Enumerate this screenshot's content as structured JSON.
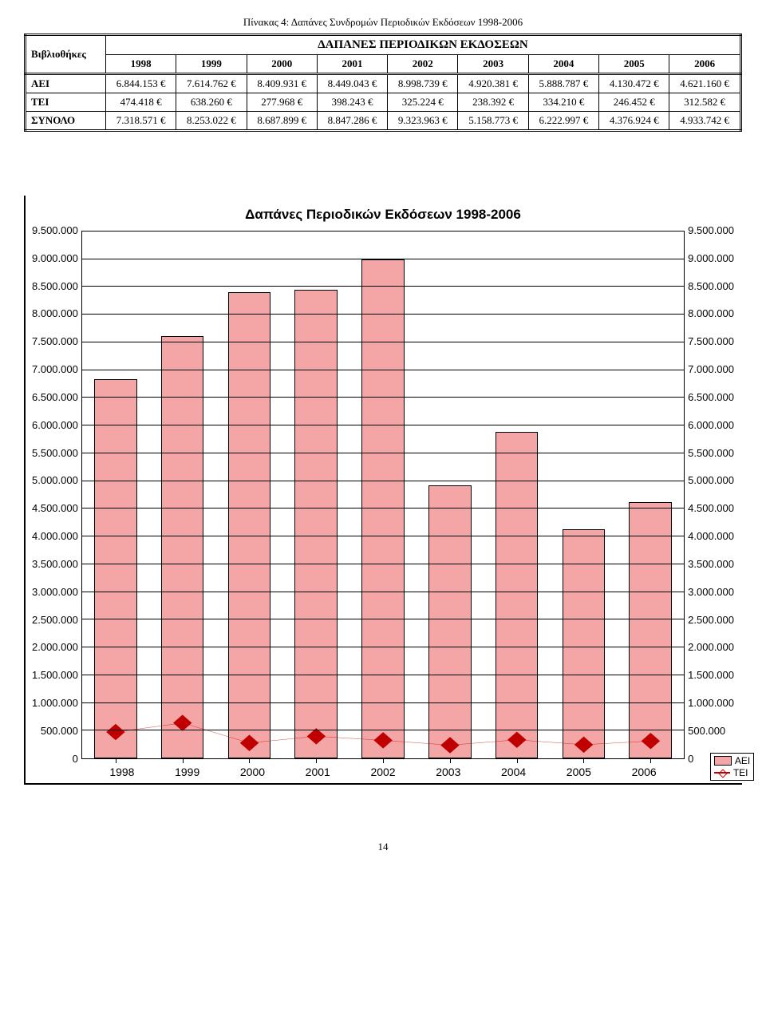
{
  "caption": "Πίνακας 4: Δαπάνες Συνδρομών Περιοδικών Εκδόσεων 1998-2006",
  "table": {
    "title": "ΔΑΠΑΝΕΣ ΠΕΡΙΟΔΙΚΩΝ ΕΚΔΟΣΕΩΝ",
    "corner": "Βιβλιοθήκες",
    "years": [
      "1998",
      "1999",
      "2000",
      "2001",
      "2002",
      "2003",
      "2004",
      "2005",
      "2006"
    ],
    "rows": [
      {
        "label": "ΑΕΙ",
        "cells": [
          "6.844.153 €",
          "7.614.762 €",
          "8.409.931 €",
          "8.449.043 €",
          "8.998.739 €",
          "4.920.381 €",
          "5.888.787 €",
          "4.130.472 €",
          "4.621.160 €"
        ]
      },
      {
        "label": "ΤΕΙ",
        "cells": [
          "474.418 €",
          "638.260 €",
          "277.968 €",
          "398.243 €",
          "325.224 €",
          "238.392 €",
          "334.210 €",
          "246.452 €",
          "312.582 €"
        ]
      },
      {
        "label": "ΣΥΝΟΛΟ",
        "cells": [
          "7.318.571 €",
          "8.253.022 €",
          "8.687.899 €",
          "8.847.286 €",
          "9.323.963 €",
          "5.158.773 €",
          "6.222.997 €",
          "4.376.924 €",
          "4.933.742 €"
        ]
      }
    ]
  },
  "chart": {
    "title": "Δαπάνες Περιοδικών Εκδόσεων 1998-2006",
    "y_max": 9500000,
    "y_step": 500000,
    "y_labels": [
      "0",
      "500.000",
      "1.000.000",
      "1.500.000",
      "2.000.000",
      "2.500.000",
      "3.000.000",
      "3.500.000",
      "4.000.000",
      "4.500.000",
      "5.000.000",
      "5.500.000",
      "6.000.000",
      "6.500.000",
      "7.000.000",
      "7.500.000",
      "8.000.000",
      "8.500.000",
      "9.000.000",
      "9.500.000"
    ],
    "categories": [
      "1998",
      "1999",
      "2000",
      "2001",
      "2002",
      "2003",
      "2004",
      "2005",
      "2006"
    ],
    "bar_series": {
      "name": "ΑΕΙ",
      "color": "#f4a6a6",
      "border": "#000000",
      "values": [
        6844153,
        7614762,
        8409931,
        8449043,
        8998739,
        4920381,
        5888787,
        4130472,
        4621160
      ]
    },
    "line_series": {
      "name": "ΤΕΙ",
      "color": "#c00000",
      "marker": "diamond",
      "values": [
        474418,
        638260,
        277968,
        398243,
        325224,
        238392,
        334210,
        246452,
        312582
      ]
    },
    "grid_color": "#000000",
    "background": "#ffffff",
    "font_family": "Arial",
    "title_fontsize": 17,
    "axis_fontsize": 13
  },
  "page_number": "14"
}
